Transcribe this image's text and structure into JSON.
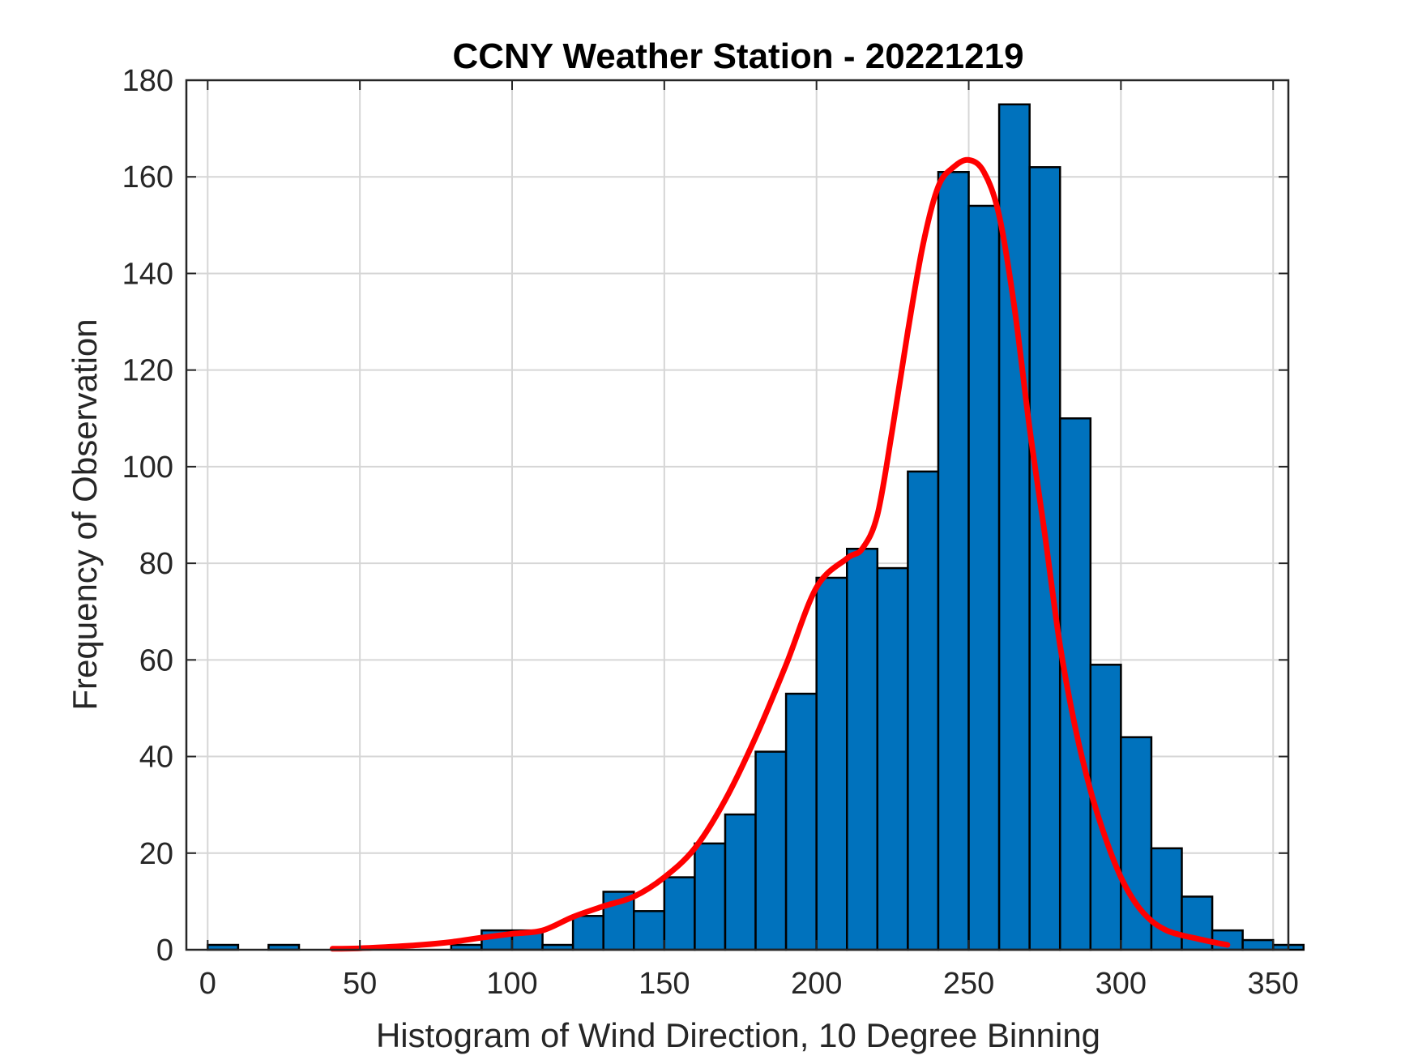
{
  "chart_data": {
    "type": "bar",
    "title": "CCNY Weather Station - 20221219",
    "xlabel": "Histogram of Wind Direction, 10 Degree Binning",
    "ylabel": "Frequency of Observation",
    "xlim": [
      -7,
      355
    ],
    "ylim": [
      0,
      180
    ],
    "xticks": [
      0,
      50,
      100,
      150,
      200,
      250,
      300,
      350
    ],
    "yticks": [
      0,
      20,
      40,
      60,
      80,
      100,
      120,
      140,
      160,
      180
    ],
    "grid": true,
    "bin_width": 10,
    "bar_color": "#0072BD",
    "bins": [
      {
        "start": 0,
        "count": 1
      },
      {
        "start": 10,
        "count": 0
      },
      {
        "start": 20,
        "count": 1
      },
      {
        "start": 30,
        "count": 0
      },
      {
        "start": 40,
        "count": 0
      },
      {
        "start": 50,
        "count": 0
      },
      {
        "start": 60,
        "count": 0
      },
      {
        "start": 70,
        "count": 0
      },
      {
        "start": 80,
        "count": 1
      },
      {
        "start": 90,
        "count": 4
      },
      {
        "start": 100,
        "count": 4
      },
      {
        "start": 110,
        "count": 1
      },
      {
        "start": 120,
        "count": 7
      },
      {
        "start": 130,
        "count": 12
      },
      {
        "start": 140,
        "count": 8
      },
      {
        "start": 150,
        "count": 15
      },
      {
        "start": 160,
        "count": 22
      },
      {
        "start": 170,
        "count": 28
      },
      {
        "start": 180,
        "count": 41
      },
      {
        "start": 190,
        "count": 53
      },
      {
        "start": 200,
        "count": 77
      },
      {
        "start": 210,
        "count": 83
      },
      {
        "start": 220,
        "count": 79
      },
      {
        "start": 230,
        "count": 99
      },
      {
        "start": 240,
        "count": 161
      },
      {
        "start": 250,
        "count": 154
      },
      {
        "start": 260,
        "count": 175
      },
      {
        "start": 270,
        "count": 162
      },
      {
        "start": 280,
        "count": 110
      },
      {
        "start": 290,
        "count": 59
      },
      {
        "start": 300,
        "count": 44
      },
      {
        "start": 310,
        "count": 21
      },
      {
        "start": 320,
        "count": 11
      },
      {
        "start": 330,
        "count": 4
      },
      {
        "start": 340,
        "count": 2
      },
      {
        "start": 350,
        "count": 1
      }
    ],
    "fit_curve": {
      "name": "smoothed density fit",
      "color": "#FF0000",
      "x": [
        41,
        50,
        60,
        70,
        80,
        90,
        100,
        110,
        120,
        130,
        140,
        150,
        160,
        170,
        180,
        190,
        200,
        210,
        215,
        220,
        225,
        230,
        235,
        240,
        245,
        250,
        255,
        260,
        265,
        270,
        275,
        280,
        285,
        290,
        295,
        300,
        305,
        310,
        315,
        320,
        325,
        330,
        335
      ],
      "y": [
        0.2,
        0.3,
        0.6,
        1.0,
        1.6,
        2.5,
        3.3,
        4.0,
        6.8,
        9.0,
        11.0,
        15.0,
        21.0,
        31.0,
        44.0,
        59.0,
        75.0,
        81.0,
        83.0,
        90.0,
        108.0,
        128.0,
        146.0,
        158.0,
        162.0,
        163.5,
        161.0,
        152.0,
        133.0,
        108.0,
        86.0,
        63.0,
        46.0,
        33.0,
        23.0,
        15.0,
        9.5,
        6.0,
        4.0,
        3.0,
        2.3,
        1.6,
        1.0
      ]
    }
  }
}
